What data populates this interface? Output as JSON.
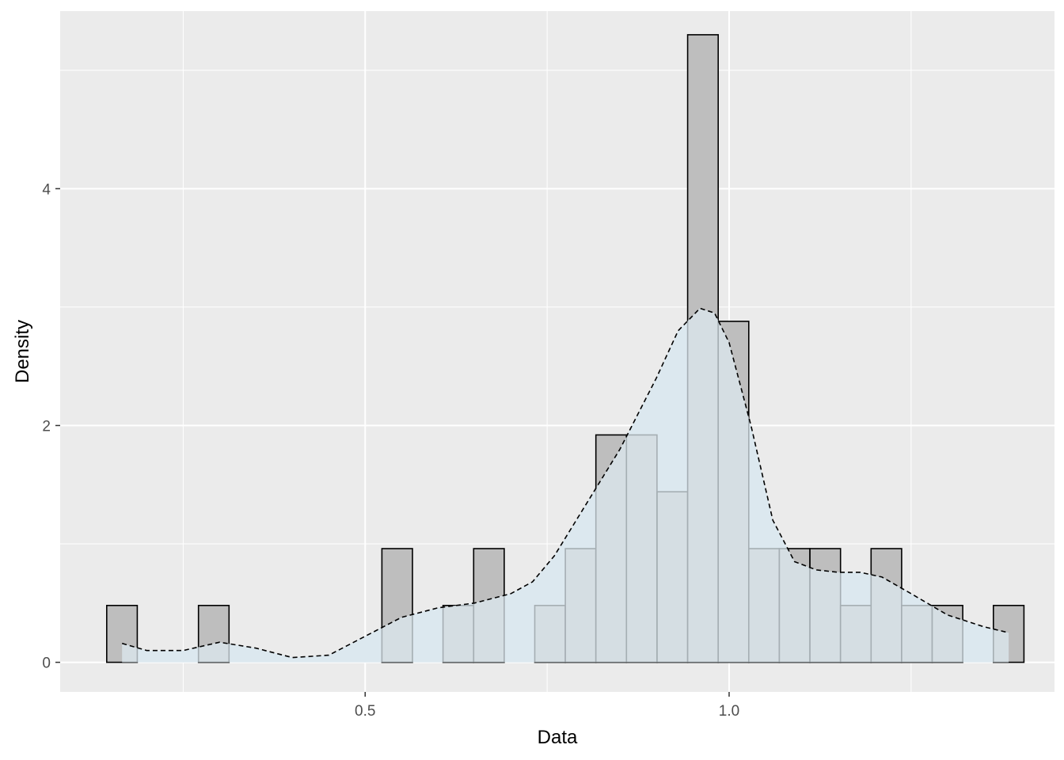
{
  "chart_data": {
    "type": "histogram",
    "title": "",
    "xlabel": "Data",
    "ylabel": "Density",
    "xlim": [
      0.081,
      1.447
    ],
    "ylim": [
      -0.25,
      5.5
    ],
    "x_ticks": [
      0.5,
      1.0
    ],
    "x_tick_labels": [
      "0.5",
      "1.0"
    ],
    "x_minor_gridlines": [
      0.25,
      0.75,
      1.25
    ],
    "y_ticks": [
      0,
      2,
      4
    ],
    "y_tick_labels": [
      "0",
      "2",
      "4"
    ],
    "y_minor_gridlines": [
      1,
      3,
      5
    ],
    "grid": true,
    "panel_background": "#ebebeb",
    "bar_fill": "#bebebe",
    "bar_outline": "#000000",
    "density_fill": "#dce8ef",
    "density_fill_opacity": 0.75,
    "density_line_style": "dashed",
    "bin_width": 0.042,
    "bins": [
      {
        "x0": 0.145,
        "x1": 0.187,
        "density": 0.48
      },
      {
        "x0": 0.187,
        "x1": 0.229,
        "density": 0
      },
      {
        "x0": 0.229,
        "x1": 0.271,
        "density": 0
      },
      {
        "x0": 0.271,
        "x1": 0.313,
        "density": 0.48
      },
      {
        "x0": 0.313,
        "x1": 0.355,
        "density": 0
      },
      {
        "x0": 0.355,
        "x1": 0.397,
        "density": 0
      },
      {
        "x0": 0.397,
        "x1": 0.439,
        "density": 0
      },
      {
        "x0": 0.439,
        "x1": 0.481,
        "density": 0
      },
      {
        "x0": 0.481,
        "x1": 0.523,
        "density": 0
      },
      {
        "x0": 0.523,
        "x1": 0.565,
        "density": 0.96
      },
      {
        "x0": 0.565,
        "x1": 0.607,
        "density": 0
      },
      {
        "x0": 0.607,
        "x1": 0.649,
        "density": 0.48
      },
      {
        "x0": 0.649,
        "x1": 0.691,
        "density": 0.96
      },
      {
        "x0": 0.691,
        "x1": 0.733,
        "density": 0
      },
      {
        "x0": 0.733,
        "x1": 0.775,
        "density": 0.48
      },
      {
        "x0": 0.775,
        "x1": 0.817,
        "density": 0.96
      },
      {
        "x0": 0.817,
        "x1": 0.859,
        "density": 1.92
      },
      {
        "x0": 0.859,
        "x1": 0.901,
        "density": 1.92
      },
      {
        "x0": 0.901,
        "x1": 0.943,
        "density": 1.44
      },
      {
        "x0": 0.943,
        "x1": 0.985,
        "density": 5.3
      },
      {
        "x0": 0.985,
        "x1": 1.027,
        "density": 2.88
      },
      {
        "x0": 1.027,
        "x1": 1.069,
        "density": 0.96
      },
      {
        "x0": 1.069,
        "x1": 1.111,
        "density": 0.96
      },
      {
        "x0": 1.111,
        "x1": 1.153,
        "density": 0.96
      },
      {
        "x0": 1.153,
        "x1": 1.195,
        "density": 0.48
      },
      {
        "x0": 1.195,
        "x1": 1.237,
        "density": 0.96
      },
      {
        "x0": 1.237,
        "x1": 1.279,
        "density": 0.48
      },
      {
        "x0": 1.279,
        "x1": 1.321,
        "density": 0.48
      },
      {
        "x0": 1.321,
        "x1": 1.363,
        "density": 0
      },
      {
        "x0": 1.363,
        "x1": 1.405,
        "density": 0.48
      }
    ],
    "density_curve": {
      "x": [
        0.166,
        0.2,
        0.25,
        0.3,
        0.35,
        0.4,
        0.45,
        0.5,
        0.55,
        0.6,
        0.65,
        0.7,
        0.73,
        0.76,
        0.8,
        0.85,
        0.9,
        0.93,
        0.96,
        0.98,
        1.0,
        1.03,
        1.06,
        1.09,
        1.12,
        1.15,
        1.18,
        1.21,
        1.25,
        1.3,
        1.35,
        1.384
      ],
      "y": [
        0.16,
        0.1,
        0.1,
        0.17,
        0.12,
        0.04,
        0.06,
        0.22,
        0.38,
        0.46,
        0.5,
        0.58,
        0.68,
        0.9,
        1.3,
        1.8,
        2.4,
        2.8,
        2.99,
        2.95,
        2.7,
        2.0,
        1.2,
        0.85,
        0.78,
        0.76,
        0.76,
        0.72,
        0.58,
        0.4,
        0.3,
        0.25
      ]
    }
  }
}
